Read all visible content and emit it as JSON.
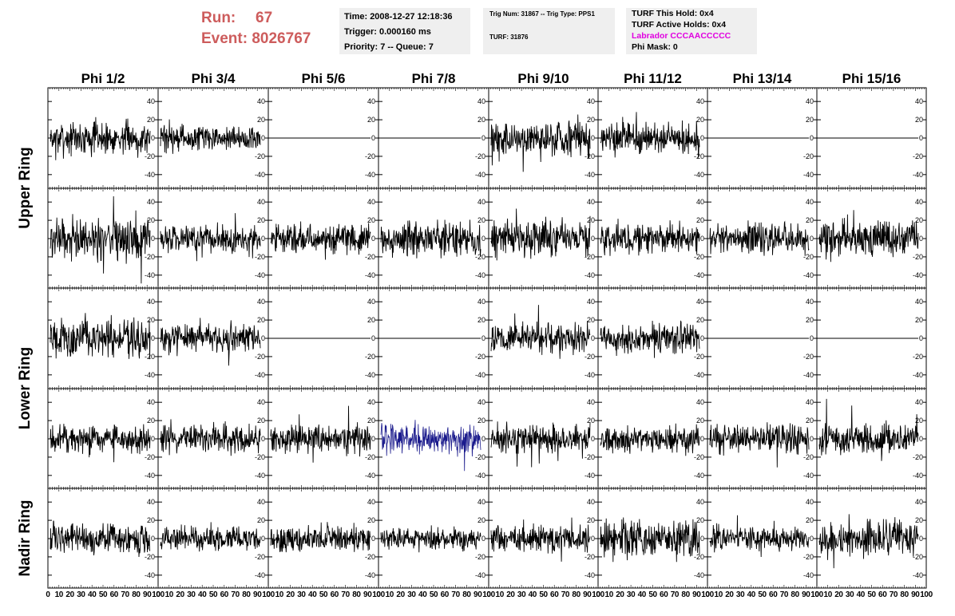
{
  "header": {
    "run_label": "Run:",
    "run_value": "67",
    "event_label": "Event:",
    "event_value": "8026767",
    "time_line": "Time: 2008-12-27 12:18:36",
    "trigger_line": "Trigger: 0.000160 ms",
    "priority_line": "Priority: 7 -- Queue: 7",
    "trig_num_line": "Trig Num: 31867 -- Trig Type: PPS1",
    "turf_line": "TURF: 31876",
    "turf_this_hold": "TURF This Hold: 0x4",
    "turf_active_holds": "TURF Active Holds: 0x4",
    "labrador": "Labrador CCCAACCCCC",
    "phi_mask": "Phi Mask: 0"
  },
  "colors": {
    "header_red": "#cd5c5c",
    "box_bg": "#efefef",
    "labrador_magenta": "#e000e0",
    "trace_black": "#000000",
    "trace_highlight_blue": "#1a1a8c"
  },
  "chart_data": {
    "type": "line",
    "columns": [
      "Phi 1/2",
      "Phi 3/4",
      "Phi 5/6",
      "Phi 7/8",
      "Phi 9/10",
      "Phi 11/12",
      "Phi 13/14",
      "Phi 15/16"
    ],
    "row_groups": [
      {
        "label": "Upper Ring",
        "rows": [
          0,
          1
        ]
      },
      {
        "label": "Lower Ring",
        "rows": [
          2,
          3
        ]
      },
      {
        "label": "Nadir Ring",
        "rows": [
          4
        ]
      }
    ],
    "xlim": [
      0,
      100
    ],
    "ylim": [
      -55,
      55
    ],
    "y_ticks": [
      -40,
      -20,
      0,
      20,
      40
    ],
    "y_tick_labels": [
      "-40",
      "-20",
      "0",
      "20",
      "40"
    ],
    "x_tick_labels": [
      "0",
      "10",
      "20",
      "30",
      "40",
      "50",
      "60",
      "70",
      "80",
      "90",
      "100"
    ],
    "panel_amplitude": [
      [
        15,
        12,
        0,
        0,
        18,
        15,
        0,
        0
      ],
      [
        20,
        12,
        14,
        16,
        16,
        14,
        15,
        16
      ],
      [
        18,
        14,
        0,
        0,
        14,
        14,
        0,
        0
      ],
      [
        13,
        13,
        13,
        14,
        13,
        12,
        13,
        14
      ],
      [
        14,
        11,
        12,
        11,
        13,
        18,
        11,
        16
      ]
    ],
    "highlighted_panel": {
      "row": 3,
      "col": 3
    }
  }
}
